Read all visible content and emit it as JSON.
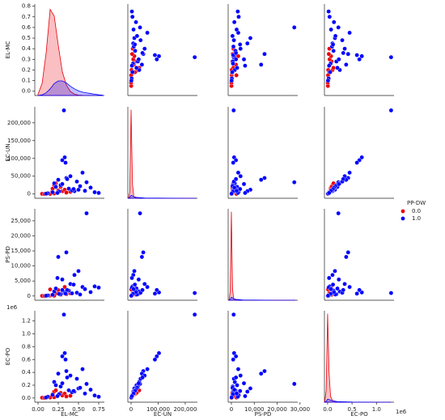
{
  "chart_data": {
    "type": "pairplot",
    "variables": [
      {
        "name": "EL-MC",
        "lim": [
          -0.04,
          0.82
        ],
        "yticks": [
          {
            "value": 0,
            "label": "0.0"
          },
          0.1,
          0.2,
          0.3,
          0.4,
          0.5,
          0.6,
          0.7,
          0.8
        ],
        "xticks": [
          {
            "value": 0,
            "label": "0.00"
          },
          0.25,
          {
            "value": 0.5,
            "label": "0.50"
          },
          0.75
        ]
      },
      {
        "name": "EC-UN",
        "lim": [
          -12000,
          245000
        ],
        "yticks": [
          0,
          {
            "value": 50000,
            "label": "50,000"
          },
          {
            "value": 100000,
            "label": "100,000"
          },
          {
            "value": 150000,
            "label": "150,000"
          },
          {
            "value": 200000,
            "label": "200,000"
          }
        ],
        "xticks": [
          0,
          {
            "value": 100000,
            "label": "100,000"
          },
          {
            "value": 200000,
            "label": "200,000"
          }
        ]
      },
      {
        "name": "PS-PD",
        "lim": [
          -1400,
          29000
        ],
        "yticks": [
          0,
          {
            "value": 5000,
            "label": "5,000"
          },
          {
            "value": 10000,
            "label": "10,000"
          },
          {
            "value": 15000,
            "label": "15,000"
          },
          {
            "value": 20000,
            "label": "20,000"
          },
          {
            "value": 25000,
            "label": "25,000"
          }
        ],
        "xticks": [
          0,
          {
            "value": 10000,
            "label": "10,000"
          },
          {
            "value": 20000,
            "label": "20,000"
          },
          {
            "value": 30000,
            "label": "30,000"
          }
        ]
      },
      {
        "name": "EC-PO",
        "lim": [
          -65000,
          1360000
        ],
        "offset_label": "1e6",
        "yticks": [
          {
            "value": 0,
            "label": "0.0"
          },
          {
            "value": 200000,
            "label": "0.2"
          },
          {
            "value": 400000,
            "label": "0.4"
          },
          {
            "value": 600000,
            "label": "0.6"
          },
          {
            "value": 800000,
            "label": "0.8"
          },
          {
            "value": 1000000,
            "label": "1.0"
          },
          {
            "value": 1200000,
            "label": "1.2"
          }
        ],
        "xticks": [
          {
            "value": 0,
            "label": "0.0"
          },
          {
            "value": 500000,
            "label": "0.5"
          },
          {
            "value": 1000000,
            "label": "1.0"
          }
        ]
      }
    ],
    "hue_title": "PP-DW",
    "series": [
      {
        "name": "0.0",
        "color": "#e8000b",
        "values": [
          [
            0.05,
            500,
            50,
            5000
          ],
          [
            0.1,
            800,
            100,
            10000
          ],
          [
            0.12,
            2000,
            200,
            20000
          ],
          [
            0.15,
            1000,
            150,
            15000
          ],
          [
            0.17,
            5000,
            300,
            30000
          ],
          [
            0.18,
            15000,
            500,
            60000
          ],
          [
            0.2,
            25000,
            1000,
            100000
          ],
          [
            0.22,
            30000,
            800,
            120000
          ],
          [
            0.25,
            10000,
            2000,
            50000
          ],
          [
            0.28,
            20000,
            400,
            80000
          ],
          [
            0.3,
            8000,
            1500,
            40000
          ],
          [
            0.33,
            12000,
            3000,
            70000
          ],
          [
            0.35,
            4000,
            600,
            25000
          ],
          [
            0.15,
            300,
            2200,
            8000
          ],
          [
            0.4,
            6000,
            900,
            35000
          ],
          [
            0.08,
            200,
            30,
            3000
          ],
          [
            0.2,
            1500,
            100,
            12000
          ]
        ]
      },
      {
        "name": "1.0",
        "color": "#0000ff",
        "values": [
          [
            0.32,
            235000,
            1000,
            1300000
          ],
          [
            0.33,
            103000,
            1200,
            700000
          ],
          [
            0.3,
            95000,
            2000,
            650000
          ],
          [
            0.34,
            88000,
            800,
            600000
          ],
          [
            0.6,
            33000,
            27500,
            220000
          ],
          [
            0.35,
            45000,
            14500,
            420000
          ],
          [
            0.25,
            40000,
            13000,
            380000
          ],
          [
            0.5,
            12000,
            8300,
            150000
          ],
          [
            0.45,
            8000,
            7000,
            100000
          ],
          [
            0.55,
            60000,
            3000,
            450000
          ],
          [
            0.7,
            5000,
            3200,
            40000
          ],
          [
            0.75,
            3000,
            2800,
            20000
          ],
          [
            0.4,
            50000,
            4000,
            350000
          ],
          [
            0.2,
            30000,
            1500,
            250000
          ],
          [
            0.22,
            20000,
            2500,
            200000
          ],
          [
            0.28,
            25000,
            600,
            180000
          ],
          [
            0.38,
            15000,
            1800,
            120000
          ],
          [
            0.42,
            10000,
            900,
            90000
          ],
          [
            0.48,
            35000,
            1100,
            300000
          ],
          [
            0.52,
            22000,
            500,
            160000
          ],
          [
            0.65,
            18000,
            1300,
            130000
          ],
          [
            0.18,
            5000,
            400,
            50000
          ],
          [
            0.12,
            2000,
            200,
            20000
          ],
          [
            0.26,
            7000,
            700,
            60000
          ],
          [
            0.36,
            42000,
            2000,
            320000
          ],
          [
            0.3,
            28000,
            5500,
            230000
          ],
          [
            0.44,
            14000,
            3800,
            110000
          ],
          [
            0.58,
            9000,
            2300,
            70000
          ],
          [
            0.1,
            1000,
            100,
            8000
          ],
          [
            0.24,
            3000,
            6000,
            30000
          ]
        ]
      }
    ],
    "diagonal": [
      {
        "x": [
          0,
          0.05,
          0.1,
          0.15,
          0.2,
          0.25,
          0.3,
          0.35,
          0.4,
          0.45,
          0.5,
          0.55,
          0.6,
          0.65,
          0.7,
          0.75,
          0.8
        ],
        "ylim": [
          0,
          6.9
        ],
        "densities": [
          [
            0.1,
            0.9,
            3.2,
            6.5,
            6.0,
            3.8,
            1.8,
            0.8,
            0.3,
            0.1,
            0.03,
            0.01,
            0,
            0,
            0,
            0,
            0
          ],
          [
            0,
            0.05,
            0.2,
            0.5,
            0.9,
            1.1,
            1.1,
            0.95,
            0.7,
            0.5,
            0.35,
            0.25,
            0.2,
            0.15,
            0.1,
            0.05,
            0.02
          ]
        ]
      },
      {
        "x": [
          -10000,
          -5000,
          0,
          5000,
          10000,
          20000,
          50000,
          100000,
          150000,
          200000,
          240000
        ],
        "ylim": [
          0,
          31
        ],
        "densities": [
          [
            0,
            2,
            30,
            5,
            0.5,
            0.1,
            0,
            0,
            0,
            0,
            0
          ],
          [
            0,
            0.3,
            1,
            0.8,
            0.5,
            0.3,
            0.1,
            0.05,
            0.02,
            0.01,
            0
          ]
        ]
      },
      {
        "x": [
          -1000,
          -500,
          0,
          500,
          1000,
          2000,
          5000,
          10000,
          20000,
          28000
        ],
        "ylim": [
          0,
          31
        ],
        "densities": [
          [
            0,
            3,
            30,
            4,
            0.5,
            0.1,
            0,
            0,
            0,
            0
          ],
          [
            0,
            0.3,
            1,
            0.8,
            0.5,
            0.3,
            0.1,
            0.05,
            0.01,
            0
          ]
        ]
      },
      {
        "x": [
          -60000,
          -30000,
          0,
          30000,
          60000,
          100000,
          200000,
          500000,
          1000000,
          1300000
        ],
        "ylim": [
          0,
          31
        ],
        "densities": [
          [
            0,
            4,
            30,
            10,
            2,
            0.5,
            0.1,
            0,
            0,
            0
          ],
          [
            0,
            0.3,
            1,
            0.9,
            0.7,
            0.5,
            0.2,
            0.05,
            0.01,
            0
          ]
        ]
      }
    ]
  }
}
